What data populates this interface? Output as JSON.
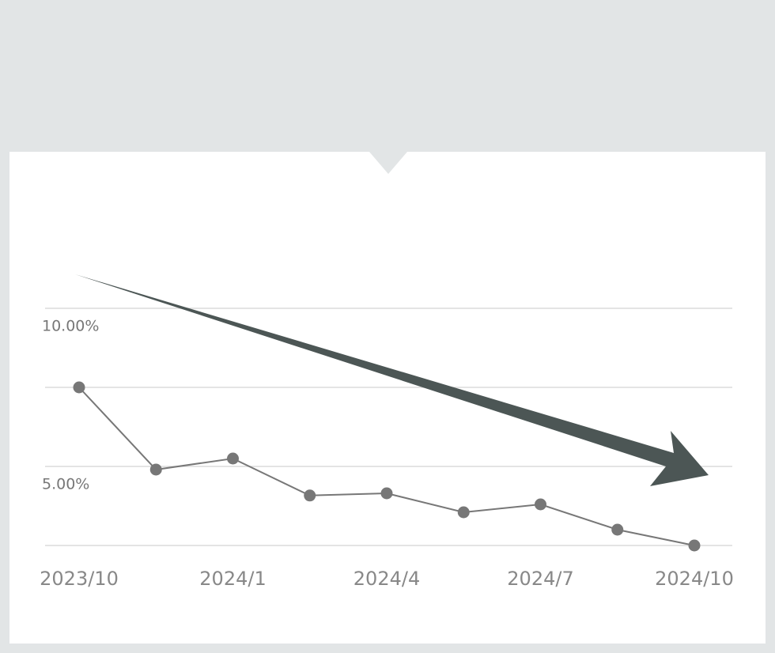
{
  "chart_data": {
    "type": "line",
    "categories": [
      "2023/10",
      null,
      "2024/1",
      null,
      "2024/4",
      null,
      "2024/7",
      null,
      "2024/10"
    ],
    "values": [
      7.5,
      4.9,
      5.25,
      4.08,
      4.15,
      3.55,
      3.8,
      3.0,
      2.5
    ],
    "color": "#777777",
    "ylim": [
      2.5,
      10
    ],
    "yticks": [
      {
        "value": 10,
        "label": "10.00%"
      },
      {
        "value": 5,
        "label": "5.00%"
      }
    ],
    "gridlines": [
      10,
      7.5,
      5,
      2.5
    ],
    "grid": true
  }
}
